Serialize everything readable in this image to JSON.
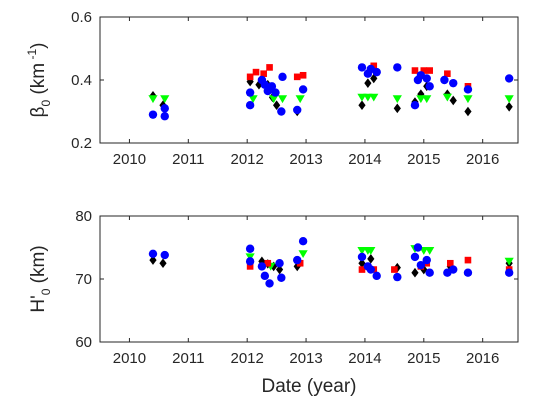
{
  "chart_data": [
    {
      "type": "scatter",
      "panel": "top",
      "title": "",
      "xlabel": "",
      "ylabel": {
        "symbol": "β",
        "subscript": "0",
        "unit_text": "(km",
        "exponent": "-1",
        "close": ")"
      },
      "xlim": [
        2009.5,
        2016.6
      ],
      "ylim": [
        0.2,
        0.6
      ],
      "xticks": [
        2010,
        2011,
        2012,
        2013,
        2014,
        2015,
        2016
      ],
      "xtick_labels": [
        "2010",
        "2011",
        "2012",
        "2013",
        "2014",
        "2015",
        "2016"
      ],
      "yticks": [
        0.2,
        0.4,
        0.6
      ],
      "ytick_labels": [
        "0.2",
        "0.4",
        "0.6"
      ],
      "grid": false,
      "legend": "none",
      "series": [
        {
          "marker": "diamond",
          "color": "#000000",
          "points": [
            [
              2010.4,
              0.35
            ],
            [
              2010.57,
              0.32
            ],
            [
              2012.05,
              0.395
            ],
            [
              2012.2,
              0.385
            ],
            [
              2012.35,
              0.385
            ],
            [
              2012.43,
              0.345
            ],
            [
              2012.5,
              0.32
            ],
            [
              2012.85,
              0.3
            ],
            [
              2013.95,
              0.32
            ],
            [
              2014.05,
              0.39
            ],
            [
              2014.15,
              0.405
            ],
            [
              2014.55,
              0.31
            ],
            [
              2014.85,
              0.33
            ],
            [
              2014.95,
              0.355
            ],
            [
              2015.05,
              0.38
            ],
            [
              2015.4,
              0.355
            ],
            [
              2015.5,
              0.335
            ],
            [
              2015.75,
              0.3
            ],
            [
              2016.45,
              0.315
            ]
          ]
        },
        {
          "marker": "triangle-down",
          "color": "#00ff00",
          "points": [
            [
              2010.4,
              0.34
            ],
            [
              2010.6,
              0.34
            ],
            [
              2012.1,
              0.34
            ],
            [
              2012.45,
              0.34
            ],
            [
              2012.6,
              0.34
            ],
            [
              2012.9,
              0.34
            ],
            [
              2013.95,
              0.345
            ],
            [
              2014.05,
              0.345
            ],
            [
              2014.15,
              0.345
            ],
            [
              2014.55,
              0.34
            ],
            [
              2014.95,
              0.34
            ],
            [
              2015.05,
              0.34
            ],
            [
              2015.4,
              0.345
            ],
            [
              2015.75,
              0.34
            ],
            [
              2016.45,
              0.34
            ]
          ]
        },
        {
          "marker": "square",
          "color": "#ff0000",
          "points": [
            [
              2012.05,
              0.41
            ],
            [
              2012.15,
              0.425
            ],
            [
              2012.28,
              0.42
            ],
            [
              2012.38,
              0.44
            ],
            [
              2012.85,
              0.41
            ],
            [
              2012.95,
              0.415
            ],
            [
              2014.15,
              0.445
            ],
            [
              2014.85,
              0.43
            ],
            [
              2015.0,
              0.43
            ],
            [
              2015.1,
              0.43
            ],
            [
              2015.4,
              0.42
            ],
            [
              2015.75,
              0.38
            ]
          ]
        },
        {
          "marker": "circle",
          "color": "#0000ff",
          "points": [
            [
              2010.4,
              0.29
            ],
            [
              2010.6,
              0.285
            ],
            [
              2010.6,
              0.31
            ],
            [
              2012.05,
              0.32
            ],
            [
              2012.05,
              0.36
            ],
            [
              2012.25,
              0.4
            ],
            [
              2012.3,
              0.385
            ],
            [
              2012.35,
              0.365
            ],
            [
              2012.42,
              0.38
            ],
            [
              2012.48,
              0.36
            ],
            [
              2012.58,
              0.3
            ],
            [
              2012.6,
              0.41
            ],
            [
              2012.85,
              0.305
            ],
            [
              2012.95,
              0.37
            ],
            [
              2013.95,
              0.44
            ],
            [
              2014.05,
              0.42
            ],
            [
              2014.1,
              0.435
            ],
            [
              2014.2,
              0.425
            ],
            [
              2014.55,
              0.44
            ],
            [
              2014.85,
              0.32
            ],
            [
              2014.9,
              0.4
            ],
            [
              2014.95,
              0.415
            ],
            [
              2015.05,
              0.405
            ],
            [
              2015.1,
              0.38
            ],
            [
              2015.35,
              0.4
            ],
            [
              2015.5,
              0.39
            ],
            [
              2015.75,
              0.37
            ],
            [
              2016.45,
              0.405
            ]
          ]
        }
      ]
    },
    {
      "type": "scatter",
      "panel": "bottom",
      "title": "",
      "xlabel": "Date (year)",
      "ylabel": {
        "symbol": "H'",
        "subscript": "0",
        "unit_text": "(km)"
      },
      "xlim": [
        2009.5,
        2016.6
      ],
      "ylim": [
        60,
        80
      ],
      "xticks": [
        2010,
        2011,
        2012,
        2013,
        2014,
        2015,
        2016
      ],
      "xtick_labels": [
        "2010",
        "2011",
        "2012",
        "2013",
        "2014",
        "2015",
        "2016"
      ],
      "yticks": [
        60,
        70,
        80
      ],
      "ytick_labels": [
        "60",
        "70",
        "80"
      ],
      "grid": false,
      "legend": "none",
      "series": [
        {
          "marker": "diamond",
          "color": "#000000",
          "points": [
            [
              2010.4,
              73.0
            ],
            [
              2010.57,
              72.5
            ],
            [
              2012.05,
              72.5
            ],
            [
              2012.25,
              72.8
            ],
            [
              2012.35,
              72.4
            ],
            [
              2012.45,
              72.0
            ],
            [
              2012.55,
              71.5
            ],
            [
              2012.85,
              72.0
            ],
            [
              2013.95,
              72.5
            ],
            [
              2014.1,
              73.2
            ],
            [
              2014.55,
              71.8
            ],
            [
              2014.85,
              71.0
            ],
            [
              2015.0,
              71.5
            ],
            [
              2015.45,
              72.0
            ],
            [
              2016.45,
              72.5
            ]
          ]
        },
        {
          "marker": "triangle-down",
          "color": "#00ff00",
          "points": [
            [
              2012.05,
              73.5
            ],
            [
              2012.4,
              72.0
            ],
            [
              2012.95,
              74.0
            ],
            [
              2013.95,
              74.5
            ],
            [
              2014.05,
              74.5
            ],
            [
              2014.1,
              74.5
            ],
            [
              2014.85,
              74.8
            ],
            [
              2015.0,
              74.5
            ],
            [
              2015.1,
              74.5
            ],
            [
              2016.45,
              72.8
            ]
          ]
        },
        {
          "marker": "square",
          "color": "#ff0000",
          "points": [
            [
              2012.05,
              72.0
            ],
            [
              2012.35,
              72.5
            ],
            [
              2012.9,
              72.5
            ],
            [
              2013.95,
              71.5
            ],
            [
              2014.15,
              71.5
            ],
            [
              2014.5,
              71.5
            ],
            [
              2014.95,
              72.0
            ],
            [
              2015.05,
              72.5
            ],
            [
              2015.45,
              72.5
            ],
            [
              2015.75,
              73.0
            ],
            [
              2016.45,
              71.5
            ]
          ]
        },
        {
          "marker": "circle",
          "color": "#0000ff",
          "points": [
            [
              2010.4,
              74.0
            ],
            [
              2010.6,
              73.8
            ],
            [
              2012.05,
              74.8
            ],
            [
              2012.05,
              72.8
            ],
            [
              2012.25,
              72.0
            ],
            [
              2012.3,
              70.5
            ],
            [
              2012.38,
              69.3
            ],
            [
              2012.55,
              72.5
            ],
            [
              2012.58,
              70.2
            ],
            [
              2012.85,
              73.0
            ],
            [
              2012.95,
              76.0
            ],
            [
              2013.95,
              73.5
            ],
            [
              2014.05,
              72.0
            ],
            [
              2014.1,
              71.5
            ],
            [
              2014.2,
              70.5
            ],
            [
              2014.55,
              70.3
            ],
            [
              2014.85,
              73.5
            ],
            [
              2014.9,
              75.0
            ],
            [
              2014.95,
              72.2
            ],
            [
              2015.05,
              73.0
            ],
            [
              2015.1,
              71.0
            ],
            [
              2015.4,
              71.0
            ],
            [
              2015.5,
              71.5
            ],
            [
              2015.75,
              71.0
            ],
            [
              2016.45,
              71.0
            ]
          ]
        }
      ]
    }
  ]
}
